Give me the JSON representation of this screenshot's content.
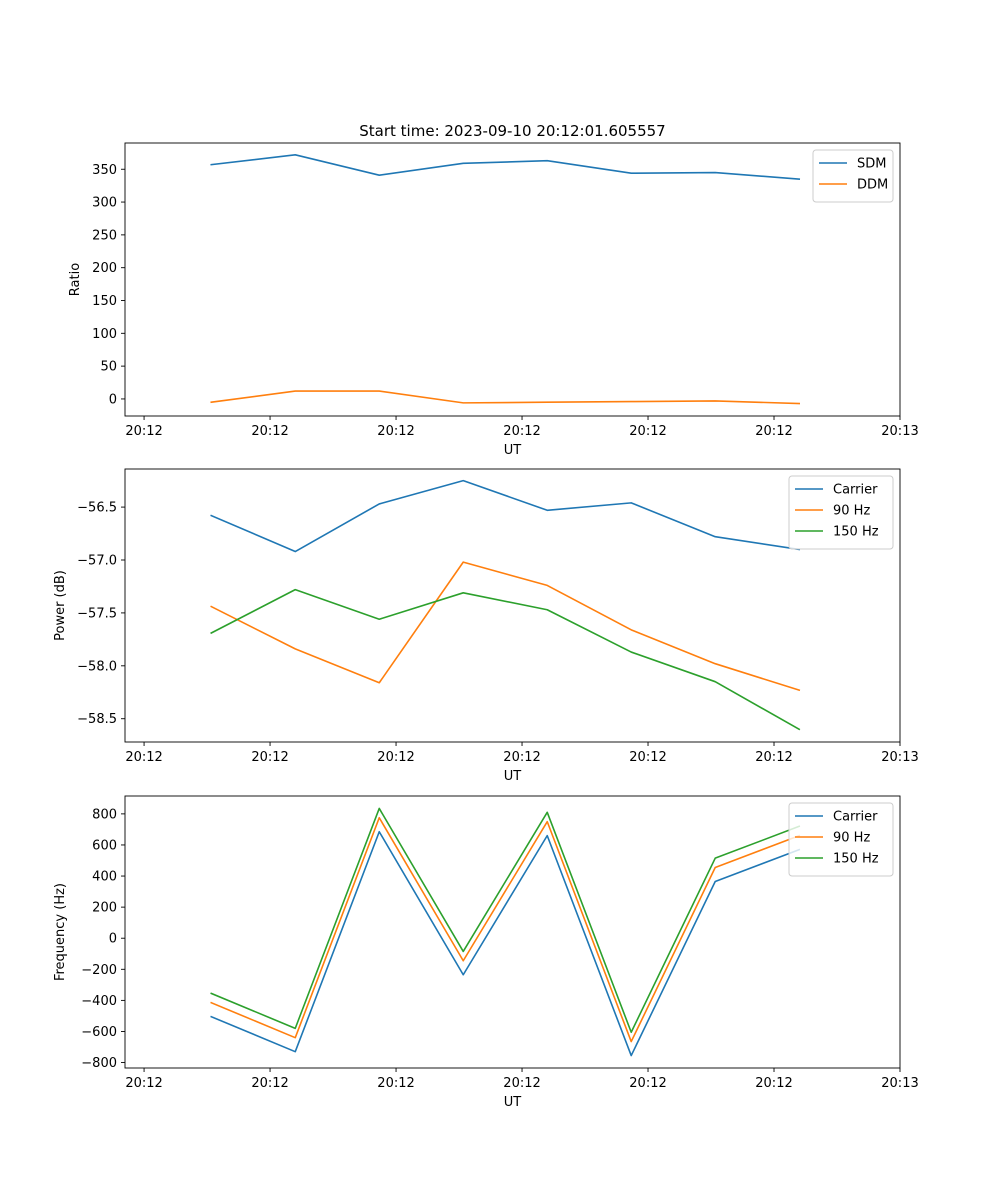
{
  "chart_data": [
    {
      "type": "line",
      "title": "Start time: 2023-09-10 20:12:01.605557",
      "xlabel": "UT",
      "ylabel": "Ratio",
      "x": [
        0.5,
        1.0,
        1.5,
        2.0,
        2.5,
        3.0,
        3.5,
        4.0
      ],
      "xlim": [
        -0.0135,
        4.6
      ],
      "xticks": [
        0.1,
        0.85,
        1.6,
        2.35,
        3.1,
        3.85,
        4.6
      ],
      "xtick_labels": [
        "20:12",
        "20:12",
        "20:12",
        "20:12",
        "20:12",
        "20:12",
        "20:13"
      ],
      "ylim": [
        -26,
        390
      ],
      "yticks": [
        0,
        50,
        100,
        150,
        200,
        250,
        300,
        350
      ],
      "ytick_labels": [
        "0",
        "50",
        "100",
        "150",
        "200",
        "250",
        "300",
        "350"
      ],
      "legend_loc": "top-right",
      "series": [
        {
          "name": "SDM",
          "color": "#1f77b4",
          "values": [
            357,
            372,
            341,
            359,
            363,
            344,
            345,
            335
          ]
        },
        {
          "name": "DDM",
          "color": "#ff7f0e",
          "values": [
            -5,
            12,
            12,
            -6,
            -5,
            -4,
            -3,
            -7
          ]
        }
      ]
    },
    {
      "type": "line",
      "title": "",
      "xlabel": "UT",
      "ylabel": "Power (dB)",
      "x": [
        0.5,
        1.0,
        1.5,
        2.0,
        2.5,
        3.0,
        3.5,
        4.0
      ],
      "xlim": [
        -0.0135,
        4.6
      ],
      "xticks": [
        0.1,
        0.85,
        1.6,
        2.35,
        3.1,
        3.85,
        4.6
      ],
      "xtick_labels": [
        "20:12",
        "20:12",
        "20:12",
        "20:12",
        "20:12",
        "20:12",
        "20:13"
      ],
      "ylim": [
        -58.72,
        -56.14
      ],
      "yticks": [
        -58.5,
        -58.0,
        -57.5,
        -57.0,
        -56.5
      ],
      "ytick_labels": [
        "−58.5",
        "−58.0",
        "−57.5",
        "−57.0",
        "−56.5"
      ],
      "legend_loc": "top-right",
      "series": [
        {
          "name": "Carrier",
          "color": "#1f77b4",
          "values": [
            -56.58,
            -56.92,
            -56.47,
            -56.25,
            -56.53,
            -56.46,
            -56.78,
            -56.9
          ]
        },
        {
          "name": "90 Hz",
          "color": "#ff7f0e",
          "values": [
            -57.44,
            -57.84,
            -58.16,
            -57.02,
            -57.24,
            -57.66,
            -57.98,
            -58.23
          ]
        },
        {
          "name": "150 Hz",
          "color": "#2ca02c",
          "values": [
            -57.69,
            -57.28,
            -57.56,
            -57.31,
            -57.47,
            -57.87,
            -58.15,
            -58.6
          ]
        }
      ]
    },
    {
      "type": "line",
      "title": "",
      "xlabel": "UT",
      "ylabel": "Frequency (Hz)",
      "x": [
        0.5,
        1.0,
        1.5,
        2.0,
        2.5,
        3.0,
        3.5,
        4.0
      ],
      "xlim": [
        -0.0135,
        4.6
      ],
      "xticks": [
        0.1,
        0.85,
        1.6,
        2.35,
        3.1,
        3.85,
        4.6
      ],
      "xtick_labels": [
        "20:12",
        "20:12",
        "20:12",
        "20:12",
        "20:12",
        "20:12",
        "20:13"
      ],
      "ylim": [
        -835,
        915
      ],
      "yticks": [
        -800,
        -600,
        -400,
        -200,
        0,
        200,
        400,
        600,
        800
      ],
      "ytick_labels": [
        "−800",
        "−600",
        "−400",
        "−200",
        "0",
        "200",
        "400",
        "600",
        "800"
      ],
      "legend_loc": "top-right",
      "series": [
        {
          "name": "Carrier",
          "color": "#1f77b4",
          "values": [
            -505,
            -730,
            685,
            -235,
            660,
            -755,
            365,
            570
          ]
        },
        {
          "name": "90 Hz",
          "color": "#ff7f0e",
          "values": [
            -415,
            -640,
            775,
            -145,
            750,
            -665,
            455,
            660
          ]
        },
        {
          "name": "150 Hz",
          "color": "#2ca02c",
          "values": [
            -355,
            -580,
            835,
            -85,
            810,
            -605,
            515,
            720
          ]
        }
      ]
    }
  ]
}
